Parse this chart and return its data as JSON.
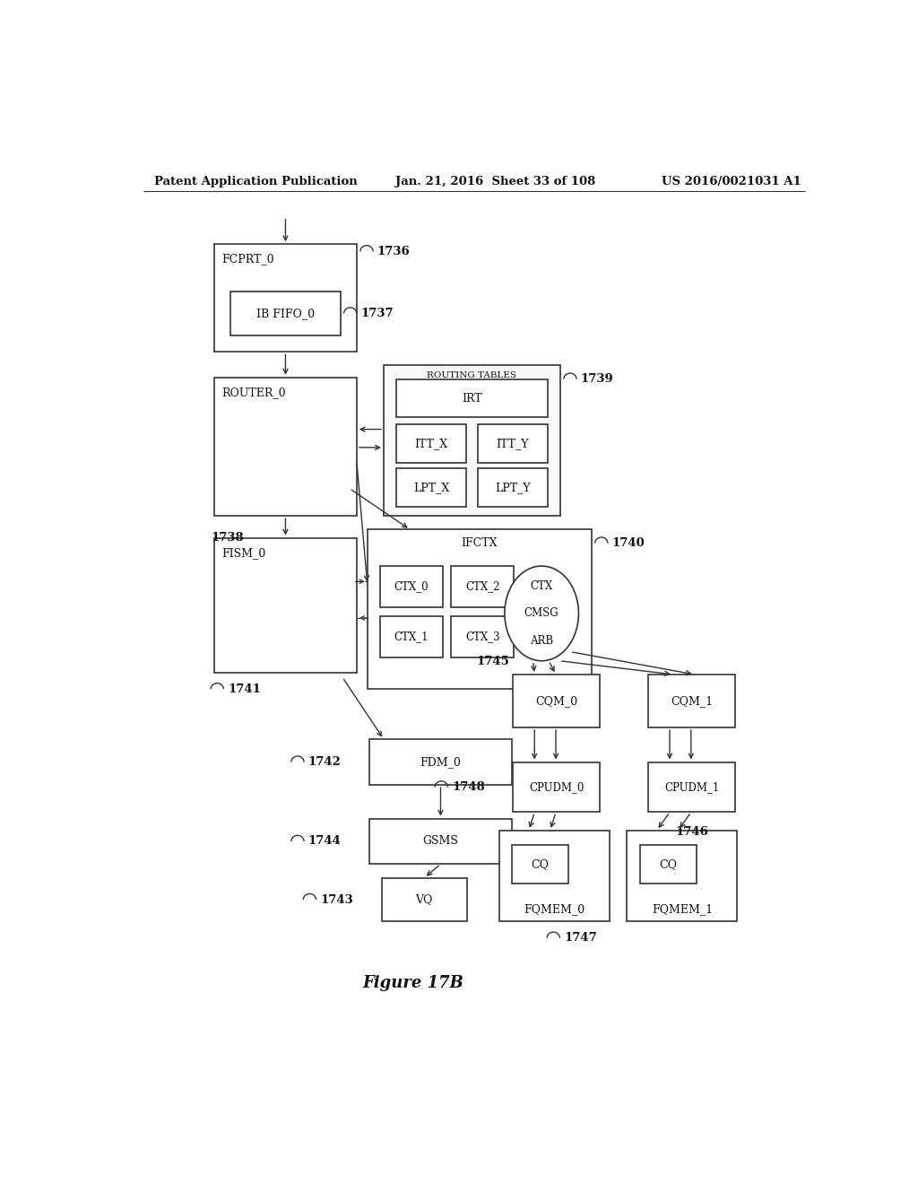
{
  "header_left": "Patent Application Publication",
  "header_mid": "Jan. 21, 2016  Sheet 33 of 108",
  "header_right": "US 2016/0021031 A1",
  "figure_label": "Figure 17B",
  "bg_color": "#ffffff",
  "line_color": "#333333",
  "box_color": "#ffffff",
  "text_color": "#111111"
}
